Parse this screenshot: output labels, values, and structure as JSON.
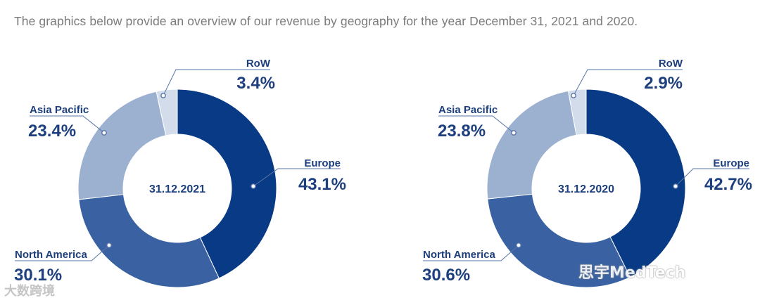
{
  "intro_text": "The graphics below provide an overview of our revenue by geography for the year December 31, 2021 and 2020.",
  "colors": {
    "europe": "#083a85",
    "north_america": "#3a62a2",
    "asia_pacific": "#9cb0d0",
    "row": "#d3dcea",
    "text": "#1d3f7e",
    "leader": "#5775a8"
  },
  "chart_data": [
    {
      "type": "pie",
      "center_label": "31.12.2021",
      "slices": [
        {
          "name": "Europe",
          "value": 43.1,
          "label": "43.1%"
        },
        {
          "name": "North America",
          "value": 30.1,
          "label": "30.1%"
        },
        {
          "name": "Asia Pacific",
          "value": 23.4,
          "label": "23.4%"
        },
        {
          "name": "RoW",
          "value": 3.4,
          "label": "3.4%"
        }
      ]
    },
    {
      "type": "pie",
      "center_label": "31.12.2020",
      "slices": [
        {
          "name": "Europe",
          "value": 42.7,
          "label": "42.7%"
        },
        {
          "name": "North America",
          "value": 30.6,
          "label": "30.6%"
        },
        {
          "name": "Asia Pacific",
          "value": 23.8,
          "label": "23.8%"
        },
        {
          "name": "RoW",
          "value": 2.9,
          "label": "2.9%"
        }
      ]
    }
  ],
  "watermarks": {
    "left": "大数跨境",
    "right": "思宇MedTech"
  }
}
